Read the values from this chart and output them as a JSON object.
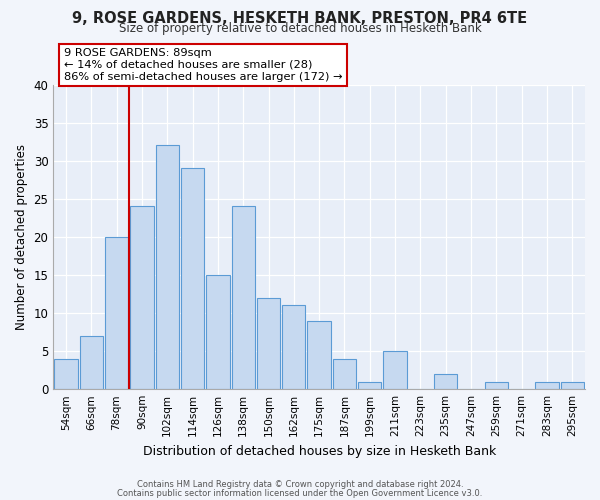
{
  "title1": "9, ROSE GARDENS, HESKETH BANK, PRESTON, PR4 6TE",
  "title2": "Size of property relative to detached houses in Hesketh Bank",
  "xlabel": "Distribution of detached houses by size in Hesketh Bank",
  "ylabel": "Number of detached properties",
  "bar_labels": [
    "54sqm",
    "66sqm",
    "78sqm",
    "90sqm",
    "102sqm",
    "114sqm",
    "126sqm",
    "138sqm",
    "150sqm",
    "162sqm",
    "175sqm",
    "187sqm",
    "199sqm",
    "211sqm",
    "223sqm",
    "235sqm",
    "247sqm",
    "259sqm",
    "271sqm",
    "283sqm",
    "295sqm"
  ],
  "bar_values": [
    4,
    7,
    20,
    24,
    32,
    29,
    15,
    24,
    12,
    11,
    9,
    4,
    1,
    5,
    0,
    2,
    0,
    1,
    0,
    1,
    1
  ],
  "bar_color": "#c6d9f0",
  "bar_edge_color": "#5b9bd5",
  "ylim": [
    0,
    40
  ],
  "yticks": [
    0,
    5,
    10,
    15,
    20,
    25,
    30,
    35,
    40
  ],
  "vline_color": "#cc0000",
  "annotation_title": "9 ROSE GARDENS: 89sqm",
  "annotation_line1": "← 14% of detached houses are smaller (28)",
  "annotation_line2": "86% of semi-detached houses are larger (172) →",
  "annotation_box_color": "#ffffff",
  "annotation_box_edge": "#cc0000",
  "footer1": "Contains HM Land Registry data © Crown copyright and database right 2024.",
  "footer2": "Contains public sector information licensed under the Open Government Licence v3.0.",
  "bg_color": "#f2f5fb",
  "plot_bg_color": "#e8eef8"
}
